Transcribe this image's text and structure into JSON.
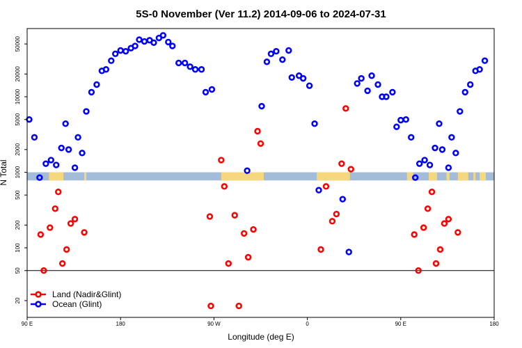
{
  "chart_data": {
    "type": "scatter",
    "title": "5S-0 November (Ver 11.2)   2014-09-06 to 2024-07-31",
    "xlabel": "Longitude (deg E)",
    "ylabel": "N Total",
    "x_scale": "longitude-wrapped",
    "x_ticks": [
      {
        "lon": 90,
        "label": "90 E"
      },
      {
        "lon": 180,
        "label": "180"
      },
      {
        "lon": 270,
        "label": "90 W"
      },
      {
        "lon": 360,
        "label": "0"
      },
      {
        "lon": 450,
        "label": "90 E"
      },
      {
        "lon": 540,
        "label": "180"
      }
    ],
    "xlim": [
      90,
      540
    ],
    "y_scale": "log",
    "ylim": [
      12,
      80000
    ],
    "y_ticks": [
      20,
      50,
      100,
      200,
      500,
      1000,
      2000,
      5000,
      10000,
      20000,
      50000
    ],
    "reference_line_y": 50,
    "grid": false,
    "legend_position": "bottom-left",
    "land_band": {
      "y_low": 780,
      "y_high": 1000,
      "ocean_color": "#a4bcd8",
      "land_color": "#f5d77e"
    },
    "land_segments": [
      [
        111,
        125
      ],
      [
        145,
        147
      ],
      [
        277,
        318
      ],
      [
        369,
        401
      ],
      [
        456,
        462
      ],
      [
        477,
        485
      ],
      [
        494,
        497
      ],
      [
        505,
        515
      ],
      [
        520,
        522
      ],
      [
        526,
        532
      ]
    ],
    "series": [
      {
        "name": "Land (Nadir&Glint)",
        "color": "#ff0000",
        "points": [
          [
            103,
            150
          ],
          [
            106,
            50
          ],
          [
            112,
            185
          ],
          [
            117,
            330
          ],
          [
            120,
            550
          ],
          [
            124,
            62
          ],
          [
            128,
            95
          ],
          [
            132,
            210
          ],
          [
            136,
            240
          ],
          [
            145,
            160
          ],
          [
            266,
            260
          ],
          [
            267,
            17
          ],
          [
            277,
            1450
          ],
          [
            280,
            650
          ],
          [
            284,
            62
          ],
          [
            290,
            270
          ],
          [
            294,
            17
          ],
          [
            299,
            155
          ],
          [
            303,
            75
          ],
          [
            308,
            175
          ],
          [
            312,
            3500
          ],
          [
            315,
            2400
          ],
          [
            373,
            95
          ],
          [
            378,
            650
          ],
          [
            384,
            225
          ],
          [
            388,
            280
          ],
          [
            393,
            1300
          ],
          [
            397,
            7000
          ],
          [
            402,
            1100
          ],
          [
            463,
            150
          ],
          [
            467,
            50
          ],
          [
            472,
            185
          ],
          [
            476,
            330
          ],
          [
            480,
            550
          ],
          [
            484,
            62
          ],
          [
            488,
            95
          ],
          [
            492,
            210
          ],
          [
            496,
            240
          ],
          [
            505,
            160
          ]
        ]
      },
      {
        "name": "Ocean (Glint)",
        "color": "#0000ff",
        "points": [
          [
            92,
            5000
          ],
          [
            97,
            2900
          ],
          [
            102,
            850
          ],
          [
            108,
            1300
          ],
          [
            113,
            1450
          ],
          [
            118,
            1250
          ],
          [
            123,
            2100
          ],
          [
            127,
            4400
          ],
          [
            130,
            2000
          ],
          [
            136,
            1150
          ],
          [
            139,
            2900
          ],
          [
            143,
            1800
          ],
          [
            147,
            6400
          ],
          [
            152,
            11500
          ],
          [
            157,
            14500
          ],
          [
            162,
            22000
          ],
          [
            166,
            23000
          ],
          [
            171,
            30000
          ],
          [
            175,
            37000
          ],
          [
            180,
            41000
          ],
          [
            185,
            40000
          ],
          [
            190,
            44000
          ],
          [
            194,
            47000
          ],
          [
            198,
            57000
          ],
          [
            203,
            54000
          ],
          [
            208,
            56000
          ],
          [
            212,
            52000
          ],
          [
            217,
            60000
          ],
          [
            221,
            65000
          ],
          [
            226,
            53000
          ],
          [
            230,
            47000
          ],
          [
            236,
            28000
          ],
          [
            242,
            28000
          ],
          [
            247,
            25000
          ],
          [
            252,
            23000
          ],
          [
            258,
            23000
          ],
          [
            262,
            11500
          ],
          [
            268,
            12500
          ],
          [
            302,
            1050
          ],
          [
            316,
            7500
          ],
          [
            321,
            29000
          ],
          [
            325,
            37000
          ],
          [
            330,
            40000
          ],
          [
            336,
            31000
          ],
          [
            342,
            41000
          ],
          [
            345,
            18000
          ],
          [
            352,
            19000
          ],
          [
            356,
            17500
          ],
          [
            362,
            14000
          ],
          [
            367,
            4400
          ],
          [
            371,
            580
          ],
          [
            394,
            440
          ],
          [
            400,
            88
          ],
          [
            408,
            15000
          ],
          [
            412,
            17500
          ],
          [
            418,
            12000
          ],
          [
            422,
            19000
          ],
          [
            428,
            14500
          ],
          [
            432,
            10000
          ],
          [
            436,
            10000
          ],
          [
            442,
            11500
          ],
          [
            446,
            4000
          ],
          [
            450,
            4900
          ],
          [
            455,
            5000
          ],
          [
            460,
            2900
          ],
          [
            464,
            850
          ],
          [
            468,
            1300
          ],
          [
            473,
            1450
          ],
          [
            478,
            1250
          ],
          [
            483,
            2100
          ],
          [
            487,
            4400
          ],
          [
            490,
            2000
          ],
          [
            496,
            1150
          ],
          [
            499,
            2900
          ],
          [
            503,
            1800
          ],
          [
            507,
            6400
          ],
          [
            512,
            11500
          ],
          [
            517,
            14500
          ],
          [
            522,
            22000
          ],
          [
            526,
            23000
          ],
          [
            531,
            30000
          ]
        ]
      }
    ]
  }
}
